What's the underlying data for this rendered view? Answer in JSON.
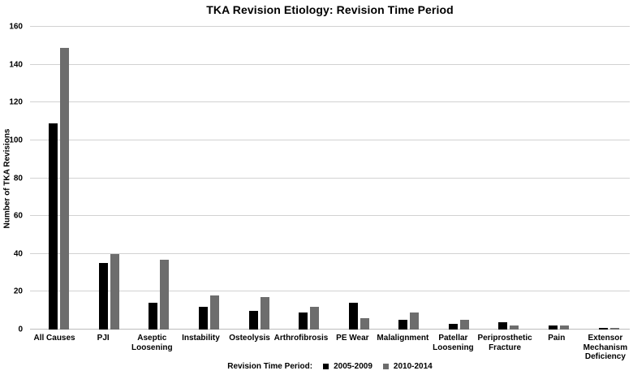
{
  "chart_data": {
    "type": "bar",
    "title": "TKA Revision Etiology: Revision Time Period",
    "ylabel": "Number of TKA Revisions",
    "xlabel": "",
    "ylim": [
      0,
      160
    ],
    "ytick_step": 20,
    "grid": true,
    "legend_position": "bottom",
    "legend_title": "Revision Time Period:",
    "categories": [
      "All Causes",
      "PJI",
      "Aseptic Loosening",
      "Instability",
      "Osteolysis",
      "Arthrofibrosis",
      "PE Wear",
      "Malalignment",
      "Patellar Loosening",
      "Periprosthetic Fracture",
      "Pain",
      "Extensor Mechanism Deficiency"
    ],
    "category_label_lines": [
      [
        "All Causes"
      ],
      [
        "PJI"
      ],
      [
        "Aseptic",
        "Loosening"
      ],
      [
        "Instability"
      ],
      [
        "Osteolysis"
      ],
      [
        "Arthrofibrosis"
      ],
      [
        "PE Wear"
      ],
      [
        "Malalignment"
      ],
      [
        "Patellar",
        "Loosening"
      ],
      [
        "Periprosthetic",
        "Fracture"
      ],
      [
        "Pain"
      ],
      [
        "Extensor",
        "Mechanism",
        "Deficiency"
      ]
    ],
    "series": [
      {
        "name": "2005-2009",
        "color": "#000000",
        "values": [
          109,
          35,
          14,
          12,
          10,
          9,
          14,
          5,
          3,
          4,
          2,
          1
        ]
      },
      {
        "name": "2010-2014",
        "color": "#6d6d6d",
        "values": [
          149,
          40,
          37,
          18,
          17,
          12,
          6,
          9,
          5,
          2,
          2,
          1
        ]
      }
    ]
  }
}
